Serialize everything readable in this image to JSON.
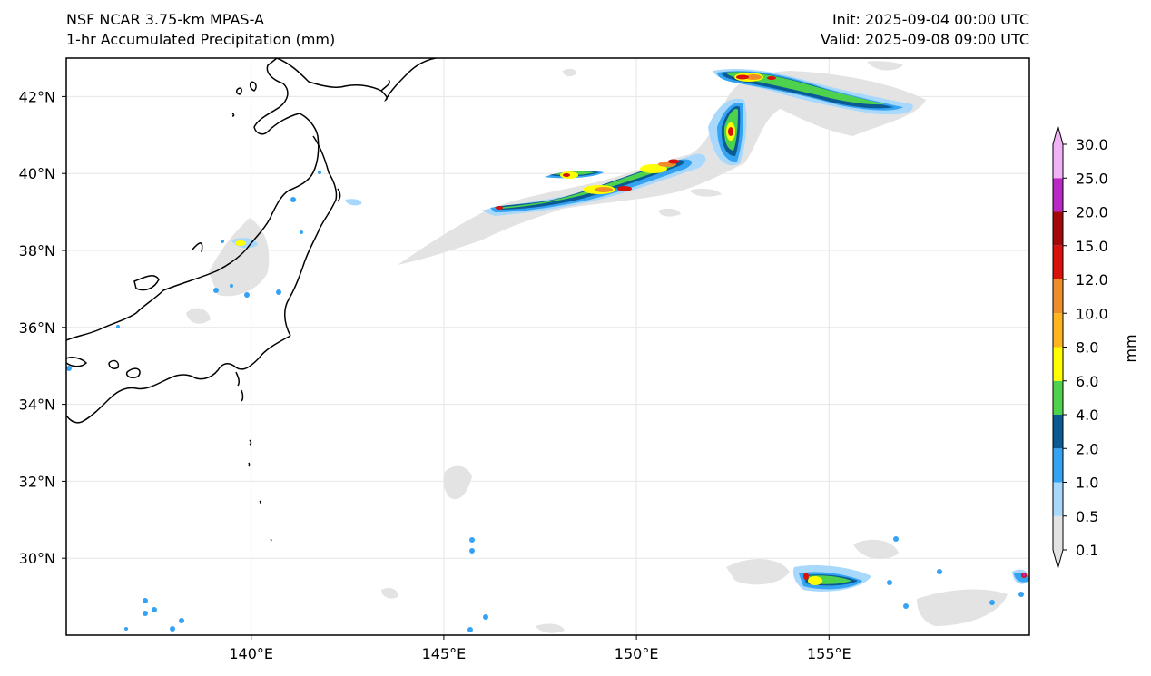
{
  "header": {
    "model": "NSF NCAR 3.75-km MPAS-A",
    "field": "1-hr Accumulated Precipitation (mm)",
    "init": "Init: 2025-09-04 00:00 UTC",
    "valid": "Valid: 2025-09-08 09:00 UTC"
  },
  "map": {
    "lon_range": [
      135.2,
      160.2
    ],
    "lat_range": [
      28.0,
      43.0
    ],
    "lon_ticks": [
      {
        "value": 140,
        "label": "140°E"
      },
      {
        "value": 145,
        "label": "145°E"
      },
      {
        "value": 150,
        "label": "150°E"
      },
      {
        "value": 155,
        "label": "155°E"
      }
    ],
    "lat_ticks": [
      {
        "value": 42,
        "label": "42°N"
      },
      {
        "value": 40,
        "label": "40°N"
      },
      {
        "value": 38,
        "label": "38°N"
      },
      {
        "value": 36,
        "label": "36°N"
      },
      {
        "value": 34,
        "label": "34°N"
      },
      {
        "value": 32,
        "label": "32°N"
      },
      {
        "value": 30,
        "label": "30°N"
      }
    ],
    "gridlines": true
  },
  "colorbar": {
    "unit": "mm",
    "levels": [
      "0.1",
      "0.5",
      "1.0",
      "2.0",
      "4.0",
      "6.0",
      "8.0",
      "10.0",
      "12.0",
      "15.0",
      "20.0",
      "25.0",
      "30.0"
    ],
    "colors": [
      "#e3e3e3",
      "#a8d8fb",
      "#35a3f3",
      "#0c5a93",
      "#4ed24e",
      "#ffff00",
      "#ffb51f",
      "#f08c29",
      "#d9110b",
      "#a30909",
      "#b927c5",
      "#f0b3f5"
    ],
    "extend": "both"
  },
  "precip_regions": [
    {
      "name": "ne-band",
      "lon": 150.5,
      "lat": 39.8,
      "level": "1.0"
    },
    {
      "name": "kuril",
      "lon": 153.5,
      "lat": 42.2,
      "level": "4.0"
    },
    {
      "name": "south-cluster",
      "lon": 154.8,
      "lat": 29.3,
      "level": "2.0"
    }
  ]
}
